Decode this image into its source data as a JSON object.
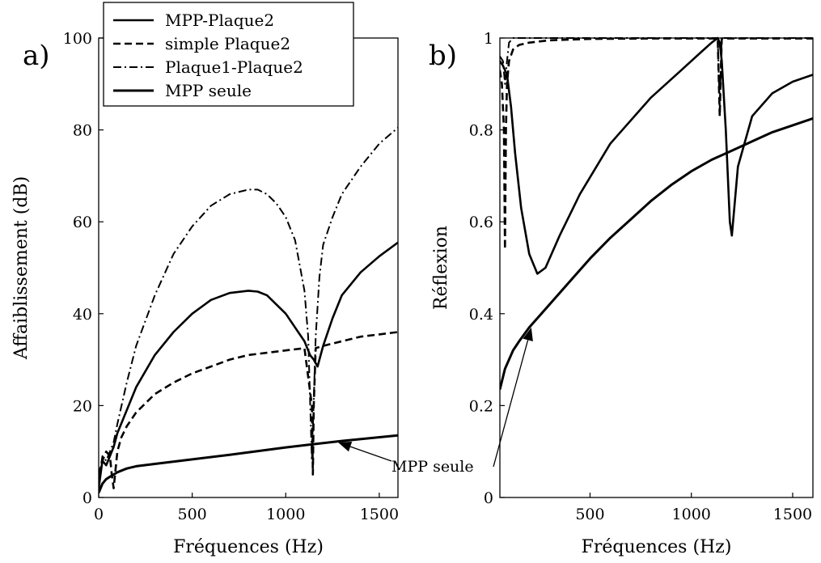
{
  "chart_data": [
    {
      "type": "line",
      "panel_label": "a)",
      "xlabel": "Fréquences (Hz)",
      "ylabel": "Affaiblissement (dB)",
      "xlim": [
        0,
        1600
      ],
      "ylim": [
        0,
        100
      ],
      "xticks": [
        0,
        500,
        1000,
        1500
      ],
      "yticks": [
        0,
        20,
        40,
        60,
        80,
        100
      ],
      "grid": false,
      "legend_position": "top-left (outside, above panel a)",
      "series": [
        {
          "name": "MPP-Plaque2",
          "style": "solid",
          "x": [
            0,
            20,
            40,
            60,
            80,
            100,
            150,
            200,
            300,
            400,
            500,
            600,
            700,
            800,
            850,
            900,
            1000,
            1050,
            1100,
            1130,
            1150,
            1170,
            1200,
            1250,
            1300,
            1400,
            1500,
            1600
          ],
          "y": [
            2,
            8,
            7,
            9,
            11,
            14,
            19,
            24,
            31,
            36,
            40,
            43,
            44.5,
            45,
            44.8,
            44,
            40,
            37,
            34,
            31,
            30,
            28.5,
            33,
            39,
            44,
            49,
            52.5,
            55.5
          ]
        },
        {
          "name": "simple Plaque2",
          "style": "dashed",
          "x": [
            0,
            20,
            40,
            60,
            70,
            80,
            90,
            100,
            120,
            150,
            200,
            300,
            400,
            500,
            600,
            700,
            800,
            900,
            1000,
            1100,
            1140,
            1145,
            1150,
            1160,
            1200,
            1300,
            1400,
            1500,
            1600
          ],
          "y": [
            5,
            8,
            10,
            9,
            5,
            2,
            6,
            10,
            13,
            15.5,
            18.5,
            22.5,
            25,
            27,
            28.5,
            30,
            31,
            31.5,
            32,
            32.5,
            20,
            5,
            20,
            32.5,
            33,
            34,
            35,
            35.5,
            36
          ]
        },
        {
          "name": "Plaque1-Plaque2",
          "style": "dashdot",
          "x": [
            0,
            20,
            40,
            60,
            80,
            100,
            150,
            200,
            300,
            400,
            500,
            600,
            700,
            800,
            850,
            900,
            950,
            1000,
            1050,
            1100,
            1120,
            1140,
            1160,
            1180,
            1200,
            1250,
            1300,
            1400,
            1500,
            1600
          ],
          "y": [
            4,
            9,
            8,
            10,
            12,
            16,
            25,
            33,
            44,
            53,
            59,
            63.5,
            66,
            67,
            67,
            66,
            64,
            61,
            56,
            45,
            35,
            8,
            35,
            48,
            55,
            61,
            66,
            72,
            77,
            80.5
          ]
        },
        {
          "name": "MPP seule",
          "style": "solid-thick",
          "x": [
            0,
            20,
            40,
            60,
            80,
            100,
            150,
            200,
            300,
            500,
            700,
            1000,
            1300,
            1600
          ],
          "y": [
            1,
            3,
            4,
            4.5,
            5,
            5.5,
            6.3,
            6.8,
            7.3,
            8.3,
            9.3,
            10.9,
            12.3,
            13.5
          ]
        }
      ],
      "annotations": [
        {
          "text": "MPP seule",
          "arrow_to": [
            1280,
            12
          ]
        }
      ]
    },
    {
      "type": "line",
      "panel_label": "b)",
      "xlabel": "Fréquences (Hz)",
      "ylabel": "Réflexion",
      "xlim": [
        55,
        1600
      ],
      "ylim": [
        0,
        1
      ],
      "xticks": [
        500,
        1000,
        1500
      ],
      "yticks": [
        0,
        0.2,
        0.4,
        0.6,
        0.8,
        1
      ],
      "ytick_labels": [
        "0",
        "0.2",
        "0.4",
        "0.6",
        "0.8",
        "1"
      ],
      "grid": false,
      "series": [
        {
          "name": "MPP-Plaque2",
          "style": "solid",
          "x": [
            55,
            70,
            90,
            110,
            130,
            160,
            200,
            240,
            280,
            350,
            450,
            600,
            800,
            950,
            1050,
            1100,
            1130,
            1140,
            1150,
            1170,
            1190,
            1200,
            1230,
            1300,
            1400,
            1500,
            1600
          ],
          "y": [
            0.95,
            0.94,
            0.92,
            0.85,
            0.75,
            0.63,
            0.53,
            0.487,
            0.5,
            0.57,
            0.66,
            0.77,
            0.87,
            0.93,
            0.97,
            0.99,
            1.0,
            0.99,
            0.95,
            0.8,
            0.6,
            0.57,
            0.72,
            0.83,
            0.88,
            0.905,
            0.92
          ]
        },
        {
          "name": "simple Plaque2",
          "style": "dashed",
          "x": [
            55,
            65,
            75,
            80,
            85,
            90,
            100,
            120,
            150,
            200,
            300,
            500,
            800,
            1100,
            1130,
            1140,
            1150,
            1160,
            1200,
            1600
          ],
          "y": [
            0.93,
            0.9,
            0.8,
            0.54,
            0.8,
            0.9,
            0.95,
            0.975,
            0.985,
            0.99,
            0.995,
            0.998,
            0.999,
            0.999,
            0.999,
            0.83,
            0.999,
            0.999,
            0.999,
            0.999
          ]
        },
        {
          "name": "Plaque1-Plaque2",
          "style": "dashdot",
          "x": [
            55,
            70,
            80,
            90,
            100,
            120,
            150,
            200,
            500,
            1000,
            1130,
            1140,
            1150,
            1160,
            1200,
            1600
          ],
          "y": [
            0.96,
            0.95,
            0.9,
            0.95,
            0.99,
            1.0,
            1.0,
            1.0,
            1.0,
            1.0,
            1.0,
            0.85,
            1.0,
            1.0,
            1.0,
            1.0
          ]
        },
        {
          "name": "MPP seule",
          "style": "solid-thick",
          "x": [
            55,
            80,
            120,
            150,
            200,
            250,
            300,
            400,
            500,
            600,
            700,
            800,
            900,
            1000,
            1100,
            1200,
            1300,
            1400,
            1500,
            1600
          ],
          "y": [
            0.235,
            0.28,
            0.32,
            0.34,
            0.37,
            0.395,
            0.42,
            0.47,
            0.52,
            0.565,
            0.605,
            0.645,
            0.68,
            0.71,
            0.735,
            0.755,
            0.775,
            0.795,
            0.81,
            0.825
          ]
        }
      ],
      "annotations": [
        {
          "text": "MPP seule",
          "arrow_to": [
            210,
            0.37
          ]
        }
      ]
    }
  ]
}
